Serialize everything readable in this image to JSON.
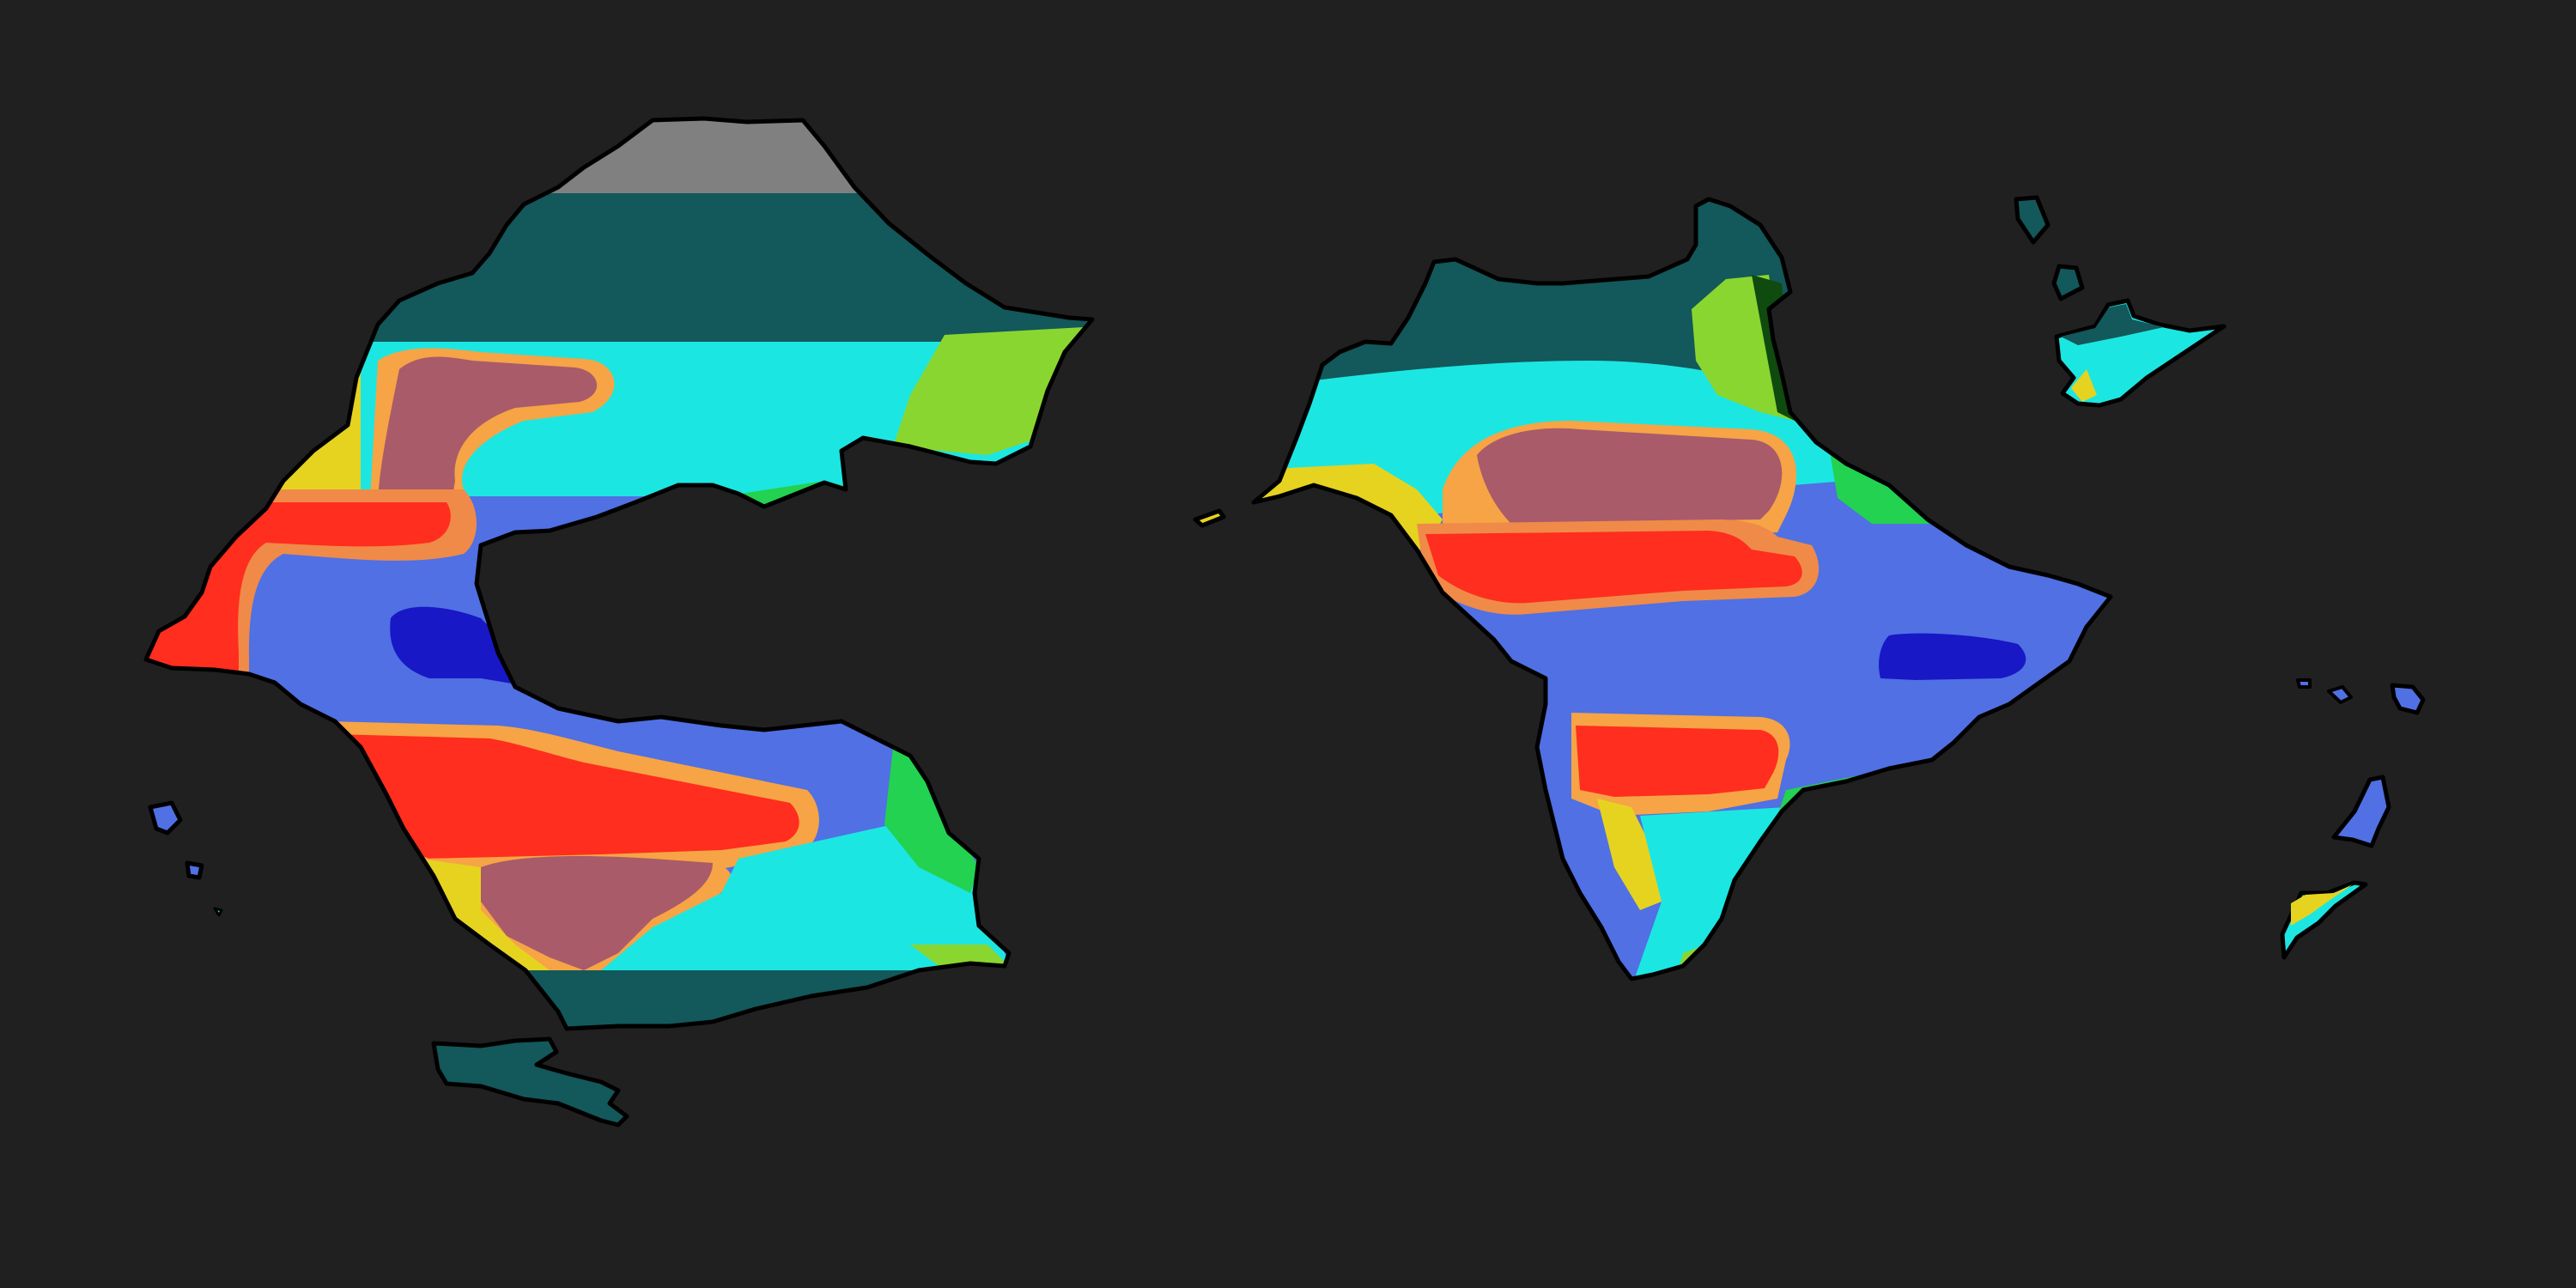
{
  "map": {
    "background": "#202020",
    "coastline_color": "#000000",
    "zones": {
      "polar": "#808080",
      "tundra": "#13585a",
      "humid": "#1ce6e2",
      "grassland": "#8ad630",
      "forest": "#22d250",
      "dry_edge": "#e6d320",
      "steppe": "#f6a445",
      "arid_fringe": "#f08a48",
      "hot_desert": "#ff2e1e",
      "upland_desert": "#a95b6a",
      "tropical": "#5070e3",
      "rainforest": "#1818c6",
      "dark_forest": "#0f4a0f"
    }
  }
}
